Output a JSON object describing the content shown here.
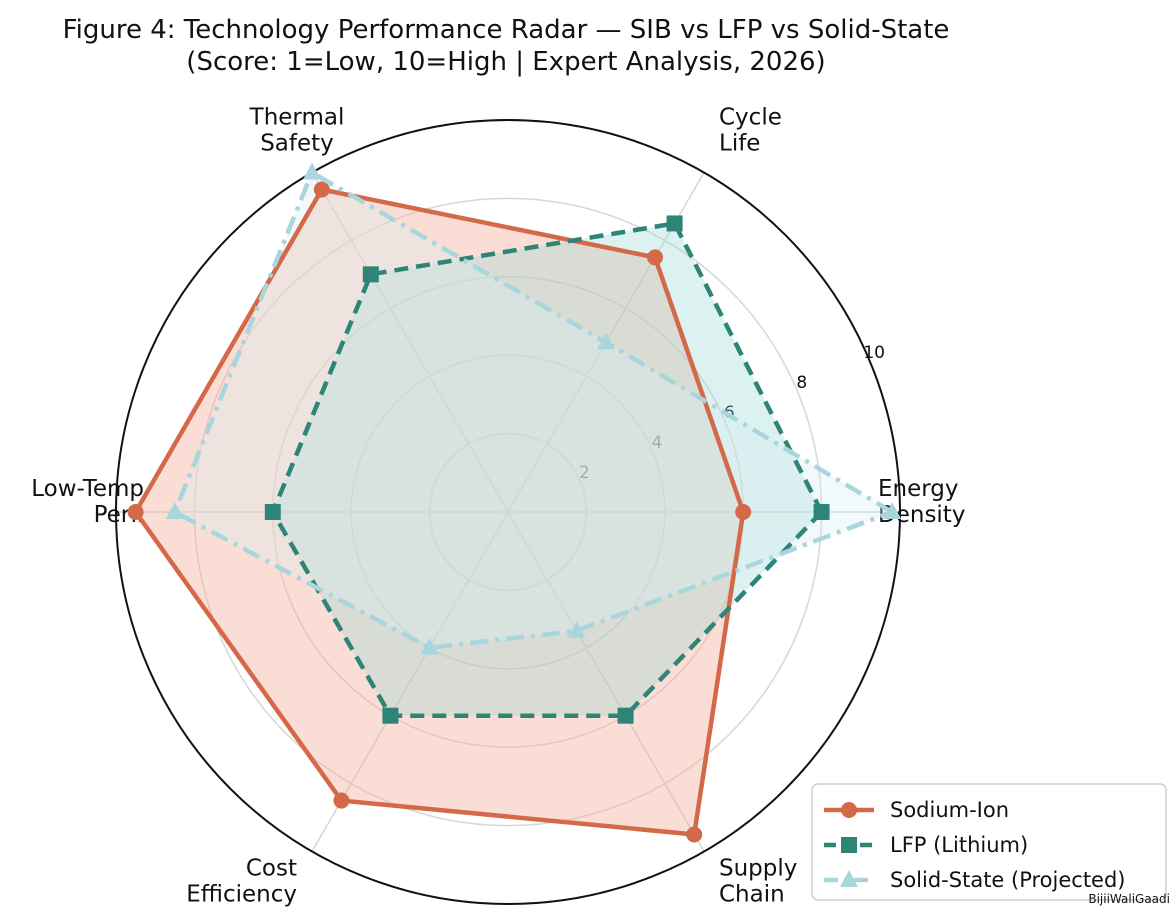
{
  "chart_data": {
    "type": "radar",
    "title": "Figure 4: Technology Performance Radar — SIB vs LFP vs Solid-State",
    "subtitle": "(Score: 1=Low, 10=High | Expert Analysis, 2026)",
    "axes": [
      {
        "key": "energy_density",
        "label_lines": [
          "Energy",
          "Density"
        ]
      },
      {
        "key": "cycle_life",
        "label_lines": [
          "Cycle",
          "Life"
        ]
      },
      {
        "key": "thermal_safety",
        "label_lines": [
          "Thermal",
          "Safety"
        ]
      },
      {
        "key": "low_temp",
        "label_lines": [
          "Low-Temp",
          "Perf."
        ]
      },
      {
        "key": "cost_efficiency",
        "label_lines": [
          "Cost",
          "Efficiency"
        ]
      },
      {
        "key": "supply_chain",
        "label_lines": [
          "Supply",
          "Chain"
        ]
      }
    ],
    "r_range": [
      0,
      10
    ],
    "r_ticks": [
      "2",
      "4",
      "6",
      "8",
      "10"
    ],
    "grid": true,
    "legend_position": "bottom-right",
    "series": [
      {
        "name": "Sodium-Ion",
        "values": [
          6,
          7.5,
          9.5,
          9.5,
          8.5,
          9.5
        ],
        "color": "#d4694a",
        "fill": "#f4b3a1",
        "line_style": "solid",
        "marker": "circle"
      },
      {
        "name": "LFP (Lithium)",
        "values": [
          8,
          8.5,
          7,
          6,
          6,
          6
        ],
        "color": "#2e8577",
        "fill": "#9adbd4",
        "line_style": "dashed",
        "marker": "square"
      },
      {
        "name": "Solid-State (Projected)",
        "values": [
          9.8,
          5,
          10,
          8.5,
          4,
          3.5
        ],
        "color": "#a9d5dc",
        "fill": "#d8eef1",
        "line_style": "dashdot",
        "marker": "triangle"
      }
    ]
  },
  "watermark": "BijiiWaliGaadi"
}
